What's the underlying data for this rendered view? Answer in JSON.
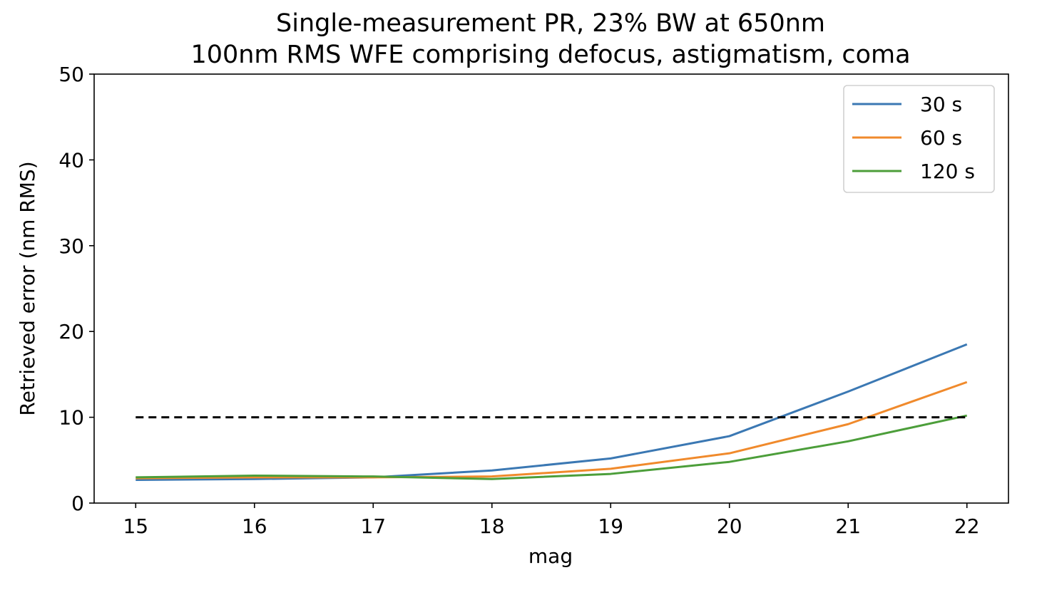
{
  "chart_data": {
    "type": "line",
    "title": "Single-measurement PR, 23% BW at 650nm",
    "subtitle": "100nm RMS WFE comprising defocus, astigmatism, coma",
    "xlabel": "mag",
    "ylabel": "Retrieved error (nm RMS)",
    "xlim": [
      14.65,
      22.35
    ],
    "ylim": [
      0,
      50
    ],
    "x": [
      15,
      16,
      17,
      18,
      19,
      20,
      21,
      22
    ],
    "xticks": [
      "15",
      "16",
      "17",
      "18",
      "19",
      "20",
      "21",
      "22"
    ],
    "yticks": [
      "0",
      "10",
      "20",
      "30",
      "40",
      "50"
    ],
    "series": [
      {
        "name": "30 s",
        "color": "#3b78b3",
        "values": [
          2.7,
          2.8,
          3.0,
          3.8,
          5.2,
          7.8,
          13.0,
          18.5
        ]
      },
      {
        "name": "60 s",
        "color": "#f08a2c",
        "values": [
          2.9,
          3.0,
          3.0,
          3.1,
          4.0,
          5.8,
          9.2,
          14.1
        ]
      },
      {
        "name": "120 s",
        "color": "#4c9e3a",
        "values": [
          3.0,
          3.2,
          3.1,
          2.8,
          3.4,
          4.8,
          7.2,
          10.2
        ]
      }
    ],
    "reference_line": {
      "y": 10,
      "x_range": [
        15,
        22
      ],
      "style": "dashed",
      "color": "#000000"
    },
    "grid": false,
    "legend_position": "top-right"
  }
}
